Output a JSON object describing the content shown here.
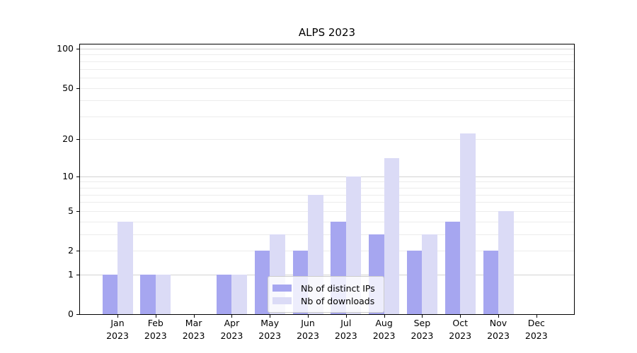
{
  "chart_data": {
    "type": "bar",
    "title": "ALPS 2023",
    "categories": [
      "Jan 2023",
      "Feb 2023",
      "Mar 2023",
      "Apr 2023",
      "May 2023",
      "Jun 2023",
      "Jul 2023",
      "Aug 2023",
      "Sep 2023",
      "Oct 2023",
      "Nov 2023",
      "Dec 2023"
    ],
    "series": [
      {
        "name": "Nb of distinct IPs",
        "color": "#a6a6f0",
        "values": [
          1,
          1,
          0,
          1,
          2,
          2,
          4,
          3,
          2,
          4,
          2,
          0
        ]
      },
      {
        "name": "Nb of downloads",
        "color": "#dbdbf6",
        "values": [
          4,
          1,
          0,
          1,
          3,
          7,
          10,
          14,
          3,
          22,
          5,
          0
        ]
      }
    ],
    "xlabel": "",
    "ylabel": "",
    "yscale": "log1p",
    "yticks": [
      0,
      1,
      2,
      5,
      10,
      20,
      50,
      100
    ],
    "major_gridlines": [
      1,
      10,
      100
    ],
    "minor_gridlines": [
      2,
      3,
      4,
      5,
      6,
      7,
      8,
      9,
      20,
      30,
      40,
      50,
      60,
      70,
      80,
      90
    ],
    "ylim": [
      0,
      107
    ],
    "grid": "horizontal",
    "legend_position": "lower center"
  },
  "colors": {
    "axis": "#000000",
    "grid_minor": "#ececec",
    "grid_major": "#d2d2d2",
    "legend_border": "#cccccc",
    "legend_background": "rgba(255,255,255,0.8)",
    "text": "#000000"
  }
}
